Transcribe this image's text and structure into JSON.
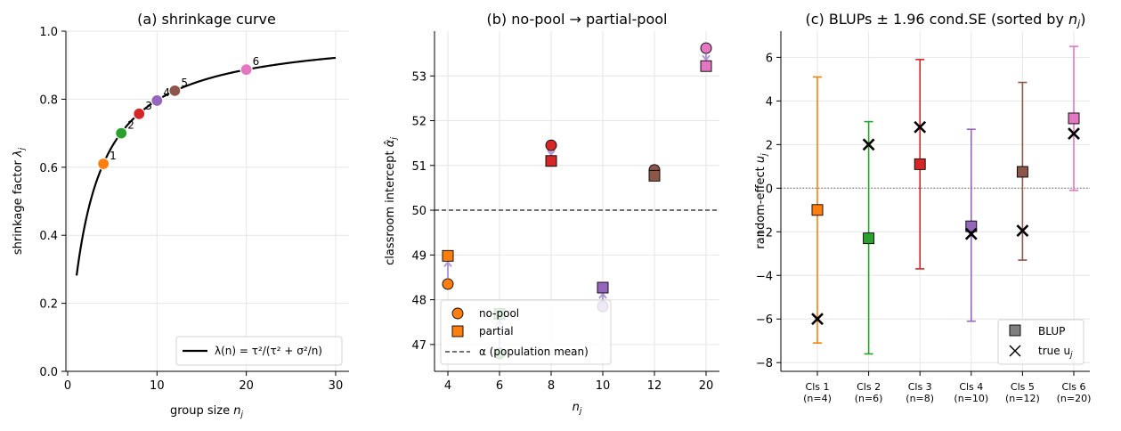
{
  "chart_data": [
    {
      "type": "line",
      "title": "(a) shrinkage curve",
      "xlabel_main": "group size ",
      "xlabel_sym": "n",
      "xlabel_sub": "j",
      "ylabel_main": "shrinkage factor ",
      "ylabel_sym": "λ",
      "ylabel_sub": "j",
      "xlim": [
        -0.2,
        31.5
      ],
      "ylim": [
        0.0,
        1.0
      ],
      "xticks": [
        0,
        10,
        20,
        30
      ],
      "xtick_labels": [
        "0",
        "10",
        "20",
        "30"
      ],
      "yticks": [
        0.0,
        0.2,
        0.4,
        0.6,
        0.8,
        1.0
      ],
      "ytick_labels": [
        "0.0",
        "0.2",
        "0.4",
        "0.6",
        "0.8",
        "1.0"
      ],
      "grid": true,
      "curve": {
        "n_start": 1,
        "n_end": 30,
        "n_half": 2.55
      },
      "legend": {
        "label": "λ(n) = τ²/(τ² + σ²/n)",
        "placement": "lower-right"
      },
      "points": [
        {
          "label": "1",
          "n": 4,
          "lambda": 0.61,
          "color": "#ff7f0e"
        },
        {
          "label": "2",
          "n": 6,
          "lambda": 0.7,
          "color": "#2ca02c"
        },
        {
          "label": "3",
          "n": 8,
          "lambda": 0.757,
          "color": "#d62728"
        },
        {
          "label": "4",
          "n": 10,
          "lambda": 0.796,
          "color": "#9467bd"
        },
        {
          "label": "5",
          "n": 12,
          "lambda": 0.825,
          "color": "#8c564b"
        },
        {
          "label": "6",
          "n": 20,
          "lambda": 0.887,
          "color": "#e377c2"
        }
      ]
    },
    {
      "type": "scatter",
      "title": "(b) no-pool → partial-pool",
      "xlabel_sym": "n",
      "xlabel_sub": "j",
      "ylabel_main": "classroom intercept ",
      "ylabel_sym": "α̂",
      "ylabel_sub": "j",
      "categories": [
        "4",
        "6",
        "8",
        "10",
        "12",
        "20"
      ],
      "ylim": [
        46.4,
        54.0
      ],
      "yticks": [
        47,
        48,
        49,
        50,
        51,
        52,
        53
      ],
      "ytick_labels": [
        "47",
        "48",
        "49",
        "50",
        "51",
        "52",
        "53"
      ],
      "grid": true,
      "alpha": 50,
      "series": [
        {
          "name": "no-pool",
          "values": [
            48.35,
            46.8,
            51.45,
            47.85,
            50.9,
            53.62
          ]
        },
        {
          "name": "partial",
          "values": [
            48.98,
            47.68,
            51.1,
            48.27,
            50.77,
            53.22
          ]
        }
      ],
      "colors": [
        "#ff7f0e",
        "#2ca02c",
        "#d62728",
        "#9467bd",
        "#8c564b",
        "#e377c2"
      ],
      "legend": {
        "placement": "lower-left",
        "items": [
          "no-pool",
          "partial",
          "α (population mean)"
        ]
      }
    },
    {
      "type": "scatter",
      "title_main": "(c) BLUPs ± 1.96 cond.SE  (sorted by ",
      "title_sym": "n",
      "title_sub": "j",
      "title_end": ")",
      "ylabel_main": "random-effect ",
      "ylabel_sym": "u",
      "ylabel_sub": "j",
      "categories": [
        "Cls 1",
        "Cls 2",
        "Cls 3",
        "Cls 4",
        "Cls 5",
        "Cls 6"
      ],
      "category_sub": [
        "(n=4)",
        "(n=6)",
        "(n=8)",
        "(n=10)",
        "(n=12)",
        "(n=20)"
      ],
      "ylim": [
        -8.4,
        7.2
      ],
      "yticks": [
        -8,
        -6,
        -4,
        -2,
        0,
        2,
        4,
        6
      ],
      "ytick_labels": [
        "−8",
        "−6",
        "−4",
        "−2",
        "0",
        "2",
        "4",
        "6"
      ],
      "grid": true,
      "series": [
        {
          "name": "BLUP",
          "values": [
            -1.0,
            -2.3,
            1.1,
            -1.75,
            0.75,
            3.2
          ]
        },
        {
          "name": "true u_j",
          "values": [
            -6.0,
            2.0,
            2.8,
            -2.1,
            -1.95,
            2.5
          ]
        }
      ],
      "ci_low": [
        -7.1,
        -7.6,
        -3.7,
        -6.1,
        -3.3,
        -0.1
      ],
      "ci_high": [
        5.1,
        3.05,
        5.9,
        2.7,
        4.85,
        6.5
      ],
      "colors": [
        "#ff7f0e",
        "#2ca02c",
        "#d62728",
        "#9467bd",
        "#8c564b",
        "#e377c2"
      ],
      "legend": {
        "placement": "lower-right",
        "items": [
          "BLUP",
          "true u"
        ],
        "true_sub": "j"
      }
    }
  ]
}
